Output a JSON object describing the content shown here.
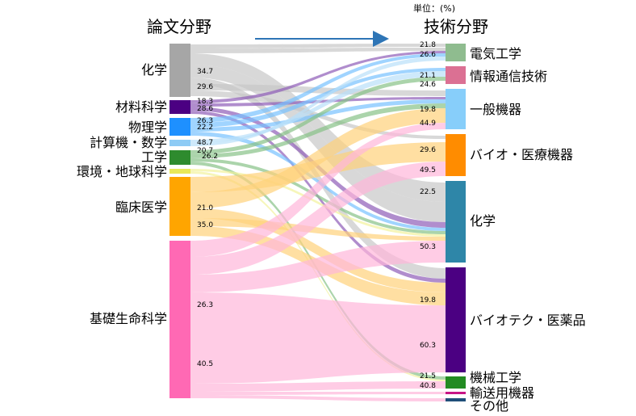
{
  "header": {
    "left_title": "論文分野",
    "right_title": "技術分野",
    "unit": "単位：(%)"
  },
  "colors": {
    "arrow": "#2E75B6",
    "link_text": "#000000"
  },
  "left_nodes": [
    {
      "id": "chem",
      "label": "化学",
      "color": "#A6A6A6",
      "flow": "#C8C8C8"
    },
    {
      "id": "mat",
      "label": "材料科学",
      "color": "#4B0082",
      "flow": "#8E5DB8"
    },
    {
      "id": "phys",
      "label": "物理学",
      "color": "#1E90FF",
      "flow": "#78C2FF"
    },
    {
      "id": "comp",
      "label": "計算機・数学",
      "color": "#8DCBF5",
      "flow": "#B9E0FA"
    },
    {
      "id": "eng",
      "label": "工学",
      "color": "#2E8B2E",
      "flow": "#88C288"
    },
    {
      "id": "env",
      "label": "環境・地球科学",
      "color": "#E8E85A",
      "flow": "#F2F29C"
    },
    {
      "id": "clin",
      "label": "臨床医学",
      "color": "#FFA500",
      "flow": "#FFD27A"
    },
    {
      "id": "bio",
      "label": "基礎生命科学",
      "color": "#FF69B4",
      "flow": "#FFB6DA"
    }
  ],
  "right_nodes": [
    {
      "id": "elec",
      "label": "電気工学",
      "color": "#8FBC8F"
    },
    {
      "id": "info",
      "label": "情報通信技術",
      "color": "#DB7093"
    },
    {
      "id": "gen",
      "label": "一般機器",
      "color": "#87CEFA"
    },
    {
      "id": "biodev",
      "label": "バイオ・医療機器",
      "color": "#FF8C00"
    },
    {
      "id": "tchem",
      "label": "化学",
      "color": "#2E86A8"
    },
    {
      "id": "pharma",
      "label": "バイオテク・医薬品",
      "color": "#4B0082"
    },
    {
      "id": "mech",
      "label": "機械工学",
      "color": "#228B22"
    },
    {
      "id": "trans",
      "label": "輸送用機器",
      "color": "#C71585"
    },
    {
      "id": "other",
      "label": "その他",
      "color": "#1F4E79"
    }
  ],
  "left_value_labels": [
    "34.7",
    "29.6",
    "18.3",
    "28.6",
    "26.3",
    "22.2",
    "48.7",
    "20.7",
    "26.2",
    "21.0",
    "35.0",
    "26.3",
    "40.5"
  ],
  "right_value_labels": [
    "21.8",
    "26.6",
    "21.1",
    "24.6",
    "19.8",
    "44.9",
    "29.6",
    "49.5",
    "22.5",
    "50.3",
    "19.8",
    "60.3",
    "21.5",
    "40.8"
  ]
}
